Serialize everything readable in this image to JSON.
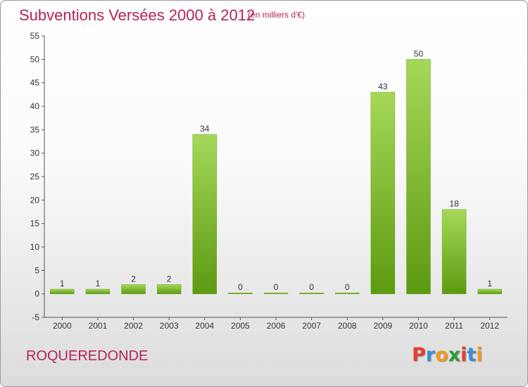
{
  "title": "Subventions Versées 2000 à 2012",
  "subtitle": "(en milliers d'€)",
  "town": "ROQUEREDONDE",
  "logo": {
    "letters": [
      "P",
      "r",
      "o",
      "x",
      "i",
      "t",
      "i"
    ],
    "colors": [
      "#e63c2f",
      "#3a8fd8",
      "#f29a1a",
      "#2f9c3c",
      "#e63c2f",
      "#3a8fd8",
      "#f29a1a"
    ]
  },
  "colors": {
    "accent": "#b5225a",
    "bar_light": "#9ed052",
    "bar_dark": "#5c9a10"
  },
  "chart_data": {
    "type": "bar",
    "categories": [
      "2000",
      "2001",
      "2002",
      "2003",
      "2004",
      "2005",
      "2006",
      "2007",
      "2008",
      "2009",
      "2010",
      "2011",
      "2012"
    ],
    "values": [
      1,
      1,
      2,
      2,
      34,
      0,
      0,
      0,
      0,
      43,
      50,
      18,
      1
    ],
    "data_labels": [
      "1",
      "1",
      "2",
      "2",
      "34",
      "0",
      "0",
      "0",
      "0",
      "43",
      "50",
      "18",
      "1"
    ],
    "ylim": [
      -5,
      55
    ],
    "yticks": [
      -5,
      0,
      5,
      10,
      15,
      20,
      25,
      30,
      35,
      40,
      45,
      50,
      55
    ],
    "ytick_labels": [
      "-5",
      "0",
      "5",
      "10",
      "15",
      "20",
      "25",
      "30",
      "35",
      "40",
      "45",
      "50",
      "55"
    ],
    "grid": false,
    "legend": "none"
  }
}
